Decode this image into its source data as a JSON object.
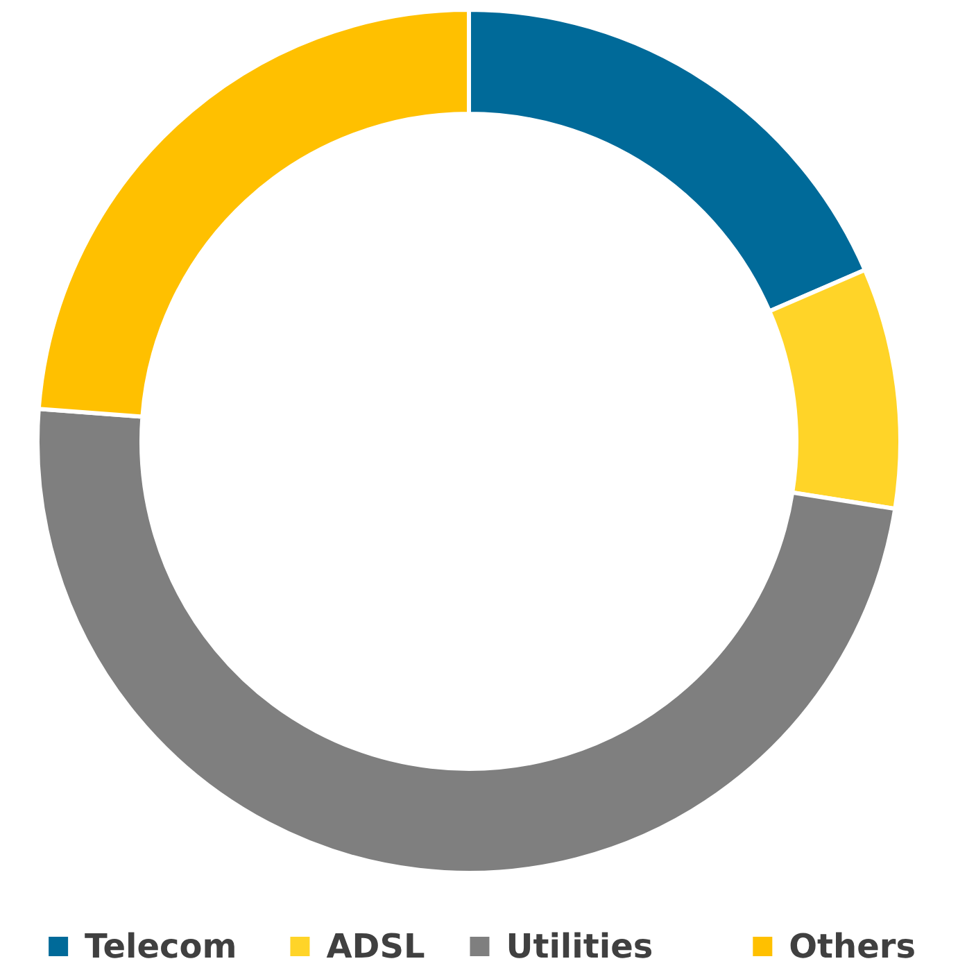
{
  "chart_data": {
    "type": "donut",
    "categories": [
      "Telecom",
      "ADSL",
      "Utilities",
      "Others"
    ],
    "values": [
      18.5,
      9,
      48.7,
      23.8
    ],
    "colors": [
      "#006a99",
      "#ffd428",
      "#7f7f7f",
      "#ffc000"
    ],
    "legend": "bottom"
  }
}
